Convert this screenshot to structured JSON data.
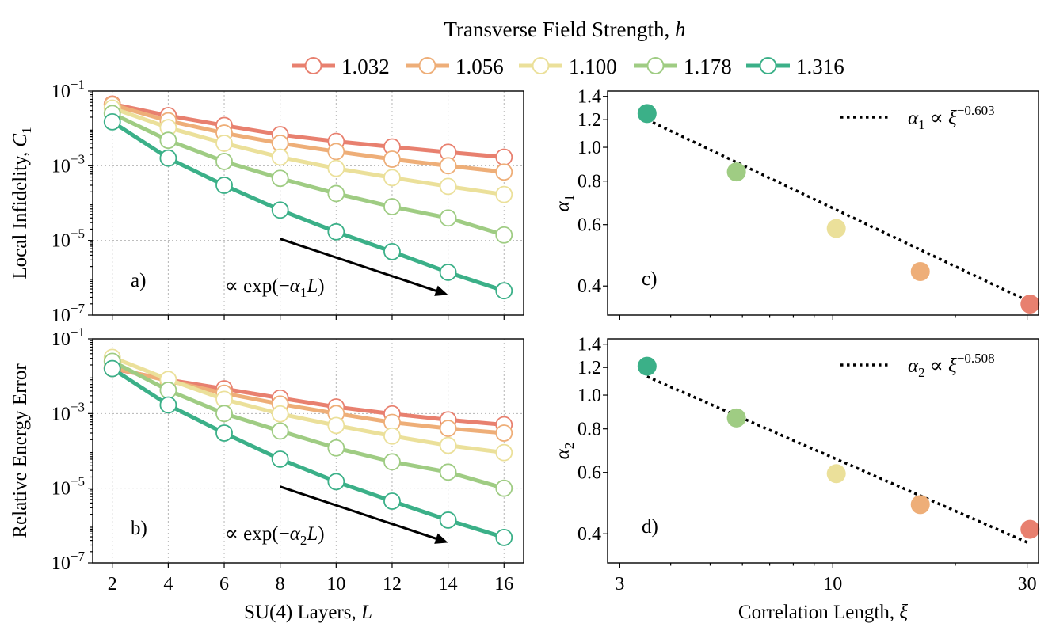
{
  "legend": {
    "title_prefix": "Transverse Field Strength, ",
    "title_symbol": "h",
    "entries": [
      {
        "label": "1.032",
        "color": "#e8806f"
      },
      {
        "label": "1.056",
        "color": "#eeae78"
      },
      {
        "label": "1.100",
        "color": "#ebe09a"
      },
      {
        "label": "1.178",
        "color": "#9fcc83"
      },
      {
        "label": "1.316",
        "color": "#3bb088"
      }
    ]
  },
  "chart_data": [
    {
      "id": "a",
      "type": "line",
      "panel_label": "a)",
      "ylabel_text": "Local Infidelity, ",
      "ylabel_symbol": "C",
      "ylabel_sub": "1",
      "yscale": "log",
      "ylim": [
        1e-07,
        0.1
      ],
      "xlim": [
        1.3,
        16.7
      ],
      "x": [
        2,
        4,
        6,
        8,
        10,
        12,
        14,
        16
      ],
      "yticks": [
        {
          "value": 0.1,
          "base": "10",
          "exp": "−1"
        },
        {
          "value": 0.001,
          "base": "10",
          "exp": "−3"
        },
        {
          "value": 1e-05,
          "base": "10",
          "exp": "−5"
        },
        {
          "value": 1e-07,
          "base": "10",
          "exp": "−7"
        }
      ],
      "series": [
        {
          "name": "1.032",
          "values": [
            0.045,
            0.022,
            0.012,
            0.0068,
            0.0045,
            0.0032,
            0.0023,
            0.0017
          ]
        },
        {
          "name": "1.056",
          "values": [
            0.043,
            0.016,
            0.0075,
            0.004,
            0.0024,
            0.0015,
            0.001,
            0.00068
          ]
        },
        {
          "name": "1.100",
          "values": [
            0.035,
            0.0105,
            0.004,
            0.0017,
            0.00085,
            0.00048,
            0.00028,
            0.00017
          ]
        },
        {
          "name": "1.178",
          "values": [
            0.025,
            0.0048,
            0.0013,
            0.00046,
            0.00018,
            8e-05,
            4e-05,
            1.4e-05
          ]
        },
        {
          "name": "1.316",
          "values": [
            0.015,
            0.0016,
            0.0003,
            6.5e-05,
            1.7e-05,
            5e-06,
            1.4e-06,
            4.5e-07
          ]
        }
      ],
      "arrow": {
        "from": [
          8,
          1.1e-05
        ],
        "to": [
          14,
          3.5e-07
        ]
      },
      "arrow_label_prefix": "∝ exp(−",
      "arrow_label_symbol": "α",
      "arrow_label_sub": "1",
      "arrow_label_suffix": "L)"
    },
    {
      "id": "b",
      "type": "line",
      "panel_label": "b)",
      "ylabel_text": "Relative Energy Error",
      "yscale": "log",
      "ylim": [
        1e-07,
        0.1
      ],
      "xlim": [
        1.3,
        16.7
      ],
      "x": [
        2,
        4,
        6,
        8,
        10,
        12,
        14,
        16
      ],
      "xticks": [
        "2",
        "4",
        "6",
        "8",
        "10",
        "12",
        "14",
        "16"
      ],
      "xlabel_text": "SU(4) Layers, ",
      "xlabel_symbol": "L",
      "yticks": [
        {
          "value": 0.1,
          "base": "10",
          "exp": "−1"
        },
        {
          "value": 0.001,
          "base": "10",
          "exp": "−3"
        },
        {
          "value": 1e-05,
          "base": "10",
          "exp": "−5"
        },
        {
          "value": 1e-07,
          "base": "10",
          "exp": "−7"
        }
      ],
      "series": [
        {
          "name": "1.032",
          "values": [
            0.016,
            0.008,
            0.0046,
            0.0026,
            0.0015,
            0.00098,
            0.00068,
            0.0005
          ]
        },
        {
          "name": "1.056",
          "values": [
            0.017,
            0.0075,
            0.0035,
            0.0018,
            0.001,
            0.00058,
            0.0004,
            0.0003
          ]
        },
        {
          "name": "1.100",
          "values": [
            0.032,
            0.0082,
            0.0024,
            0.00098,
            0.00048,
            0.00025,
            0.00014,
            9e-05
          ]
        },
        {
          "name": "1.178",
          "values": [
            0.025,
            0.0042,
            0.001,
            0.00034,
            0.00012,
            5.1e-05,
            2.7e-05,
            1e-05
          ]
        },
        {
          "name": "1.316",
          "values": [
            0.016,
            0.0017,
            0.0003,
            6e-05,
            1.5e-05,
            4.5e-06,
            1.4e-06,
            4.8e-07
          ]
        }
      ],
      "arrow": {
        "from": [
          8,
          1.1e-05
        ],
        "to": [
          14,
          3.5e-07
        ]
      },
      "arrow_label_prefix": "∝ exp(−",
      "arrow_label_symbol": "α",
      "arrow_label_sub": "2",
      "arrow_label_suffix": "L)"
    },
    {
      "id": "c",
      "type": "scatter",
      "panel_label": "c)",
      "ylabel_symbol": "α",
      "ylabel_sub": "1",
      "xscale": "log",
      "yscale": "log",
      "xlim": [
        2.8,
        32
      ],
      "ylim": [
        0.33,
        1.45
      ],
      "yticks": [
        {
          "value": 1.4,
          "label": "1.4"
        },
        {
          "value": 1.2,
          "label": "1.2"
        },
        {
          "value": 1.0,
          "label": "1.0"
        },
        {
          "value": 0.8,
          "label": "0.8"
        },
        {
          "value": 0.6,
          "label": "0.6"
        },
        {
          "value": 0.4,
          "label": "0.4"
        }
      ],
      "points": [
        {
          "x": 3.5,
          "y": 1.25,
          "color": "#3bb088"
        },
        {
          "x": 5.8,
          "y": 0.85,
          "color": "#9fcc83"
        },
        {
          "x": 10.2,
          "y": 0.585,
          "color": "#ebe09a"
        },
        {
          "x": 16.4,
          "y": 0.44,
          "color": "#eeae78"
        },
        {
          "x": 30.5,
          "y": 0.355,
          "color": "#e8806f"
        }
      ],
      "fit_line": [
        [
          3.5,
          1.2
        ],
        [
          30.5,
          0.36
        ]
      ],
      "legend_symbol": "α",
      "legend_sub": "1",
      "legend_rel": " ∝ ",
      "legend_base": "ξ",
      "legend_exp": "−0.603"
    },
    {
      "id": "d",
      "type": "scatter",
      "panel_label": "d)",
      "ylabel_symbol": "α",
      "ylabel_sub": "2",
      "xscale": "log",
      "yscale": "log",
      "xlim": [
        2.8,
        32
      ],
      "ylim": [
        0.33,
        1.45
      ],
      "xticks": [
        {
          "value": 3,
          "label": "3"
        },
        {
          "value": 10,
          "label": "10"
        },
        {
          "value": 30,
          "label": "30"
        }
      ],
      "xlabel_text": "Correlation Length, ",
      "xlabel_symbol": "ξ",
      "yticks": [
        {
          "value": 1.4,
          "label": "1.4"
        },
        {
          "value": 1.2,
          "label": "1.2"
        },
        {
          "value": 1.0,
          "label": "1.0"
        },
        {
          "value": 0.8,
          "label": "0.8"
        },
        {
          "value": 0.6,
          "label": "0.6"
        },
        {
          "value": 0.4,
          "label": "0.4"
        }
      ],
      "points": [
        {
          "x": 3.5,
          "y": 1.21,
          "color": "#3bb088"
        },
        {
          "x": 5.8,
          "y": 0.86,
          "color": "#9fcc83"
        },
        {
          "x": 10.2,
          "y": 0.595,
          "color": "#ebe09a"
        },
        {
          "x": 16.4,
          "y": 0.485,
          "color": "#eeae78"
        },
        {
          "x": 30.5,
          "y": 0.412,
          "color": "#e8806f"
        }
      ],
      "fit_line": [
        [
          3.5,
          1.13
        ],
        [
          30.5,
          0.375
        ]
      ],
      "legend_symbol": "α",
      "legend_sub": "2",
      "legend_rel": " ∝ ",
      "legend_base": "ξ",
      "legend_exp": "−0.508"
    }
  ]
}
